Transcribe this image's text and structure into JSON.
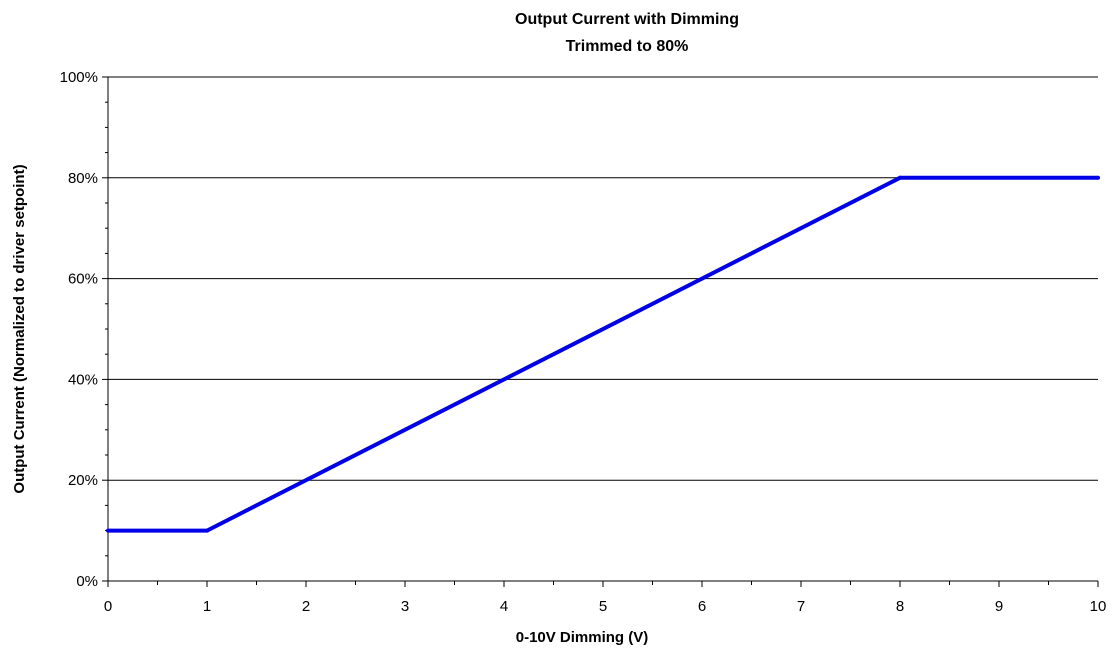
{
  "chart_data": {
    "type": "line",
    "title": "Output Current with Dimming",
    "subtitle": "Trimmed to 80%",
    "xlabel": "0-10V Dimming (V)",
    "ylabel": "Output Current (Normalized to driver setpoint)",
    "xlim": [
      0,
      10
    ],
    "ylim": [
      0,
      100
    ],
    "x_ticks": [
      0,
      1,
      2,
      3,
      4,
      5,
      6,
      7,
      8,
      9,
      10
    ],
    "x_tick_labels": [
      "0",
      "1",
      "2",
      "3",
      "4",
      "5",
      "6",
      "7",
      "8",
      "9",
      "10"
    ],
    "y_ticks": [
      0,
      20,
      40,
      60,
      80,
      100
    ],
    "y_tick_labels": [
      "0%",
      "20%",
      "40%",
      "60%",
      "80%",
      "100%"
    ],
    "grid": "horizontal major lines",
    "legend": "none",
    "series": [
      {
        "color": "#0000e6",
        "points": [
          {
            "x": 0,
            "y": 10
          },
          {
            "x": 1,
            "y": 10
          },
          {
            "x": 8,
            "y": 80
          },
          {
            "x": 10,
            "y": 80
          }
        ]
      }
    ]
  }
}
